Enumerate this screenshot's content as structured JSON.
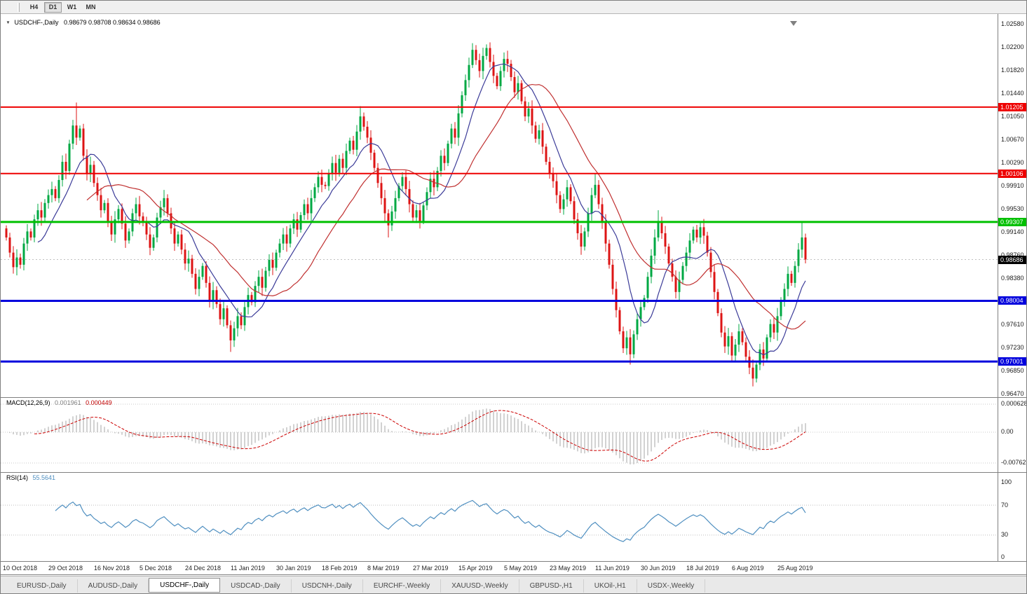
{
  "colors": {
    "up": "#00a843",
    "down": "#dd1414",
    "ma_fast": "#3b3b98",
    "ma_slow": "#c03030",
    "macd_hist": "#a6a6a6",
    "macd_signal": "#cc0000",
    "rsi": "#4f8fc0",
    "line_red": "#ee0000",
    "line_green": "#00c000",
    "line_blue": "#0000dd",
    "bid_line": "#c0c0c0"
  },
  "toolbar": {
    "timeframes": [
      "H4",
      "D1",
      "W1",
      "MN"
    ],
    "active": "D1"
  },
  "chart": {
    "title": "USDCHF-,Daily",
    "ohlc": "0.98679 0.98708 0.98634 0.98686"
  },
  "price_axis": {
    "labels": [
      "1.02580",
      "1.02200",
      "1.01820",
      "1.01440",
      "1.01050",
      "1.00670",
      "1.00290",
      "0.99910",
      "0.99530",
      "0.99140",
      "0.98760",
      "0.98380",
      "0.97610",
      "0.97230",
      "0.96850",
      "0.96470"
    ]
  },
  "lines": [
    {
      "price": "1.01205",
      "value": 1.01205,
      "color": "#ee0000",
      "width": 2
    },
    {
      "price": "1.00106",
      "value": 1.00106,
      "color": "#ee0000",
      "width": 2
    },
    {
      "price": "0.99307",
      "value": 0.99307,
      "color": "#00c000",
      "width": 3
    },
    {
      "price": "0.98004",
      "value": 0.98004,
      "color": "#0000dd",
      "width": 3
    },
    {
      "price": "0.97001",
      "value": 0.97001,
      "color": "#0000dd",
      "width": 3
    }
  ],
  "current_price": {
    "label": "0.98686",
    "value": 0.98686
  },
  "macd": {
    "label": "MACD(12,26,9)",
    "value_main": "0.001961",
    "value_signal": "0.000449",
    "axis": [
      "0.0006286",
      "0.00",
      "-0.00762"
    ]
  },
  "rsi": {
    "label": "RSI(14)",
    "value": "55.5641",
    "axis": [
      "100",
      "70",
      "30",
      "0"
    ],
    "levels": [
      70,
      30
    ]
  },
  "date_axis": [
    "10 Oct 2018",
    "29 Oct 2018",
    "16 Nov 2018",
    "5 Dec 2018",
    "24 Dec 2018",
    "11 Jan 2019",
    "30 Jan 2019",
    "18 Feb 2019",
    "8 Mar 2019",
    "27 Mar 2019",
    "15 Apr 2019",
    "5 May 2019",
    "23 May 2019",
    "11 Jun 2019",
    "30 Jun 2019",
    "18 Jul 2019",
    "6 Aug 2019",
    "25 Aug 2019"
  ],
  "tabs": {
    "active_index": 2,
    "items": [
      "EURUSD-,Daily",
      "AUDUSD-,Daily",
      "USDCHF-,Daily",
      "USDCAD-,Daily",
      "USDCNH-,Daily",
      "EURCHF-,Weekly",
      "XAUUSD-,Weekly",
      "GBPUSD-,H1",
      "UKOil-,H1",
      "USDX-,Weekly"
    ]
  },
  "chart_data": {
    "type": "candlestick",
    "symbol": "USDCHF",
    "timeframe": "Daily",
    "title": "USDCHF-,Daily",
    "price_range": [
      0.9647,
      1.0258
    ],
    "first_open": 0.992,
    "closes": [
      0.9905,
      0.988,
      0.9856,
      0.9872,
      0.986,
      0.9895,
      0.9915,
      0.9905,
      0.9935,
      0.995,
      0.9938,
      0.9962,
      0.9975,
      0.9985,
      0.997,
      1.0,
      1.003,
      1.0015,
      1.006,
      1.009,
      1.007,
      1.0085,
      1.004,
      1.001,
      1.0025,
      0.9995,
      0.9975,
      0.995,
      0.9962,
      0.993,
      0.991,
      0.9935,
      0.9952,
      0.9928,
      0.99,
      0.9915,
      0.9945,
      0.996,
      0.994,
      0.993,
      0.991,
      0.9888,
      0.9905,
      0.9938,
      0.9955,
      0.997,
      0.9945,
      0.992,
      0.9895,
      0.991,
      0.9885,
      0.9862,
      0.987,
      0.9845,
      0.982,
      0.984,
      0.9858,
      0.983,
      0.98,
      0.9818,
      0.9795,
      0.977,
      0.9788,
      0.976,
      0.9735,
      0.9755,
      0.9775,
      0.976,
      0.979,
      0.981,
      0.9798,
      0.9825,
      0.984,
      0.9822,
      0.985,
      0.9868,
      0.9855,
      0.988,
      0.9895,
      0.991,
      0.9895,
      0.992,
      0.9935,
      0.9918,
      0.9942,
      0.996,
      0.9945,
      0.997,
      0.9988,
      1.0005,
      0.9992,
      0.999,
      1.001,
      1.0028,
      1.0012,
      1.0035,
      1.002,
      1.0048,
      1.0065,
      1.005,
      1.008,
      1.0105,
      1.0088,
      1.007,
      1.0045,
      1.002,
      0.9995,
      0.997,
      0.9945,
      0.9925,
      0.9948,
      0.997,
      0.999,
      1.0005,
      0.9985,
      0.996,
      0.9938,
      0.995,
      0.9932,
      0.9958,
      0.998,
      1.0002,
      0.9988,
      1.0015,
      1.004,
      1.0028,
      1.006,
      1.0085,
      1.007,
      1.011,
      1.014,
      1.0165,
      1.019,
      1.0215,
      1.0198,
      1.018,
      1.0205,
      1.0218,
      1.0195,
      1.0172,
      1.0155,
      1.018,
      1.02,
      1.0192,
      1.017,
      1.0145,
      1.016,
      1.013,
      1.0105,
      1.0118,
      1.009,
      1.0068,
      1.0082,
      1.0055,
      1.003,
      1.001,
      0.9998,
      0.9975,
      0.9952,
      0.9968,
      0.9988,
      0.9965,
      0.9935,
      0.9912,
      0.989,
      0.9915,
      0.9945,
      0.9975,
      0.9992,
      0.996,
      0.993,
      0.9895,
      0.986,
      0.982,
      0.9785,
      0.975,
      0.9722,
      0.974,
      0.9712,
      0.9745,
      0.977,
      0.979,
      0.9805,
      0.984,
      0.9875,
      0.9905,
      0.993,
      0.9912,
      0.989,
      0.9862,
      0.984,
      0.9815,
      0.9835,
      0.9858,
      0.988,
      0.99,
      0.9918,
      0.9905,
      0.9922,
      0.9908,
      0.988,
      0.9848,
      0.9815,
      0.978,
      0.9748,
      0.9725,
      0.9742,
      0.971,
      0.9728,
      0.975,
      0.9732,
      0.9708,
      0.969,
      0.9672,
      0.9695,
      0.972,
      0.9705,
      0.974,
      0.9762,
      0.9748,
      0.9775,
      0.98,
      0.982,
      0.9845,
      0.983,
      0.9858,
      0.9885,
      0.9905,
      0.98686
    ],
    "wicks": {
      "20": {
        "h": 1.0128
      },
      "64": {
        "l": 0.9716
      },
      "101": {
        "h": 1.0122
      },
      "109": {
        "l": 0.9905
      },
      "133": {
        "h": 1.0226
      },
      "137": {
        "h": 1.0224
      },
      "168": {
        "h": 1.0011
      },
      "178": {
        "l": 0.9695
      },
      "186": {
        "h": 0.995
      },
      "198": {
        "h": 0.9931
      },
      "207": {
        "l": 0.97
      },
      "213": {
        "l": 0.9659
      },
      "227": {
        "h": 0.9931
      }
    },
    "overlays": [
      {
        "name": "MA fast",
        "type": "sma",
        "period": 10,
        "color": "#3b3b98"
      },
      {
        "name": "MA slow",
        "type": "sma",
        "period": 24,
        "color": "#c03030"
      }
    ],
    "indicators": [
      {
        "name": "MACD",
        "params": "12,26,9",
        "values": [
          0.001961,
          0.000449
        ]
      },
      {
        "name": "RSI",
        "params": "14",
        "value": 55.5641
      }
    ]
  }
}
